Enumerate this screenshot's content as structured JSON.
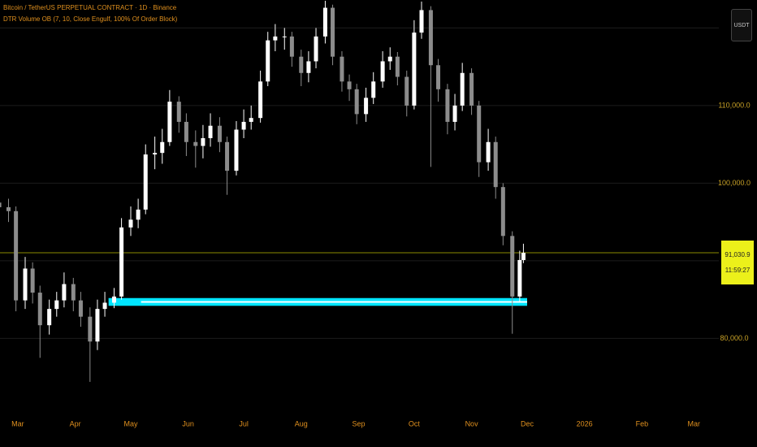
{
  "chart_data": {
    "type": "candlestick",
    "title": "Bitcoin / TetherUS PERPETUAL CONTRACT · 1D · Binance",
    "indicator": "DTR Volume OB (7, 10, Close Engulf, 100% Of Order Block)",
    "currency_button": "USDT",
    "xlim": [
      -9.6,
      378.5
    ],
    "xticks": [
      {
        "value": 0,
        "label": "Mar"
      },
      {
        "value": 31,
        "label": "Apr"
      },
      {
        "value": 61,
        "label": "May"
      },
      {
        "value": 92,
        "label": "Jun"
      },
      {
        "value": 122,
        "label": "Jul"
      },
      {
        "value": 153,
        "label": "Aug"
      },
      {
        "value": 184,
        "label": "Sep"
      },
      {
        "value": 214,
        "label": "Oct"
      },
      {
        "value": 245,
        "label": "Nov"
      },
      {
        "value": 275,
        "label": "Dec"
      },
      {
        "value": 306,
        "label": "2026"
      },
      {
        "value": 337,
        "label": "Feb"
      },
      {
        "value": 365,
        "label": "Mar"
      }
    ],
    "ylim": [
      70200,
      123600
    ],
    "yticks": [
      {
        "value": 80000,
        "label": "80,000.0"
      },
      {
        "value": 90000,
        "label": null
      },
      {
        "value": 100000,
        "label": "100,000.0"
      },
      {
        "value": 110000,
        "label": "110,000.0"
      },
      {
        "value": 120000,
        "label": null
      }
    ],
    "grid": true,
    "up_color": "#ffffff",
    "down_color": "#8c8c8c",
    "x": [
      -10,
      -5,
      -1,
      4,
      8,
      12,
      17,
      21,
      25,
      30,
      34,
      39,
      43,
      47,
      52,
      56,
      61,
      65,
      69,
      74,
      78,
      82,
      87,
      91,
      96,
      100,
      104,
      109,
      113,
      118,
      122,
      126,
      131,
      135,
      139,
      144,
      148,
      153,
      157,
      161,
      166,
      170,
      175,
      179,
      183,
      188,
      192,
      197,
      201,
      205,
      210,
      214,
      218,
      223,
      227,
      232,
      236,
      240,
      245,
      249,
      254,
      258,
      262,
      267,
      271,
      273
    ],
    "open": [
      97500,
      96900,
      96400,
      84900,
      89000,
      85900,
      81700,
      83800,
      84900,
      87000,
      84900,
      82800,
      79600,
      83800,
      84600,
      85400,
      94300,
      95300,
      96600,
      103700,
      103900,
      105300,
      110500,
      107900,
      105300,
      104800,
      105800,
      107400,
      105300,
      101600,
      106900,
      107900,
      108400,
      113100,
      118400,
      118900,
      118900,
      116300,
      114200,
      115700,
      118900,
      122600,
      116300,
      113100,
      112100,
      108900,
      111000,
      113100,
      115700,
      116300,
      113700,
      110000,
      119400,
      122300,
      115200,
      112100,
      107900,
      110000,
      114200,
      110000,
      102700,
      105300,
      99500,
      93200,
      85400,
      90100
    ],
    "high": [
      99000,
      98000,
      97000,
      90500,
      89800,
      86800,
      85000,
      86000,
      88500,
      87800,
      86000,
      84000,
      85000,
      86000,
      86500,
      95500,
      97000,
      98000,
      105000,
      106000,
      107000,
      112000,
      111200,
      109000,
      106800,
      107500,
      109000,
      108500,
      106000,
      108000,
      109500,
      110000,
      114500,
      119500,
      120500,
      120000,
      119500,
      117200,
      117000,
      120000,
      123500,
      123000,
      117000,
      114000,
      112800,
      112300,
      114300,
      117000,
      117500,
      116900,
      114500,
      121000,
      123400,
      122800,
      116000,
      112800,
      111500,
      115500,
      114800,
      110600,
      107000,
      106000,
      100000,
      93800,
      91300,
      92200
    ],
    "low": [
      95800,
      95000,
      83500,
      83800,
      84500,
      77500,
      80500,
      82800,
      84000,
      83500,
      81500,
      74400,
      78500,
      82800,
      83900,
      85000,
      93200,
      94200,
      96000,
      101800,
      102500,
      104800,
      106500,
      103500,
      102000,
      103200,
      104700,
      104000,
      98500,
      101000,
      105800,
      106900,
      107800,
      112500,
      117000,
      117200,
      115000,
      112500,
      113000,
      114800,
      118000,
      115200,
      111800,
      110600,
      107600,
      107900,
      110200,
      112300,
      114600,
      112600,
      108600,
      109500,
      118600,
      102100,
      110500,
      106300,
      106800,
      109300,
      108800,
      100800,
      101600,
      98000,
      92000,
      80600,
      84600,
      89700
    ],
    "close": [
      96900,
      96400,
      84900,
      89000,
      85900,
      81700,
      83800,
      84900,
      87000,
      84900,
      82800,
      79600,
      83800,
      84600,
      85400,
      94300,
      95300,
      96600,
      103700,
      103900,
      105300,
      110500,
      107900,
      105300,
      104800,
      105800,
      107400,
      105300,
      101600,
      106900,
      107900,
      108400,
      113100,
      118400,
      118900,
      118900,
      116300,
      114200,
      115700,
      118900,
      122600,
      116300,
      113100,
      112100,
      108900,
      111000,
      113100,
      115700,
      116300,
      113700,
      110000,
      119400,
      122300,
      115200,
      112100,
      107900,
      110000,
      114200,
      110000,
      102700,
      105300,
      99500,
      93200,
      85400,
      90100,
      91030.9
    ],
    "order_block": {
      "x_start": 49,
      "x_end": 275,
      "top": 85200,
      "bottom": 84200,
      "color": "#00e5ff"
    },
    "last_price": {
      "value": 91030.9,
      "label": "91,030.9",
      "color": "#8a8a00"
    },
    "countdown": "11:59:27"
  }
}
